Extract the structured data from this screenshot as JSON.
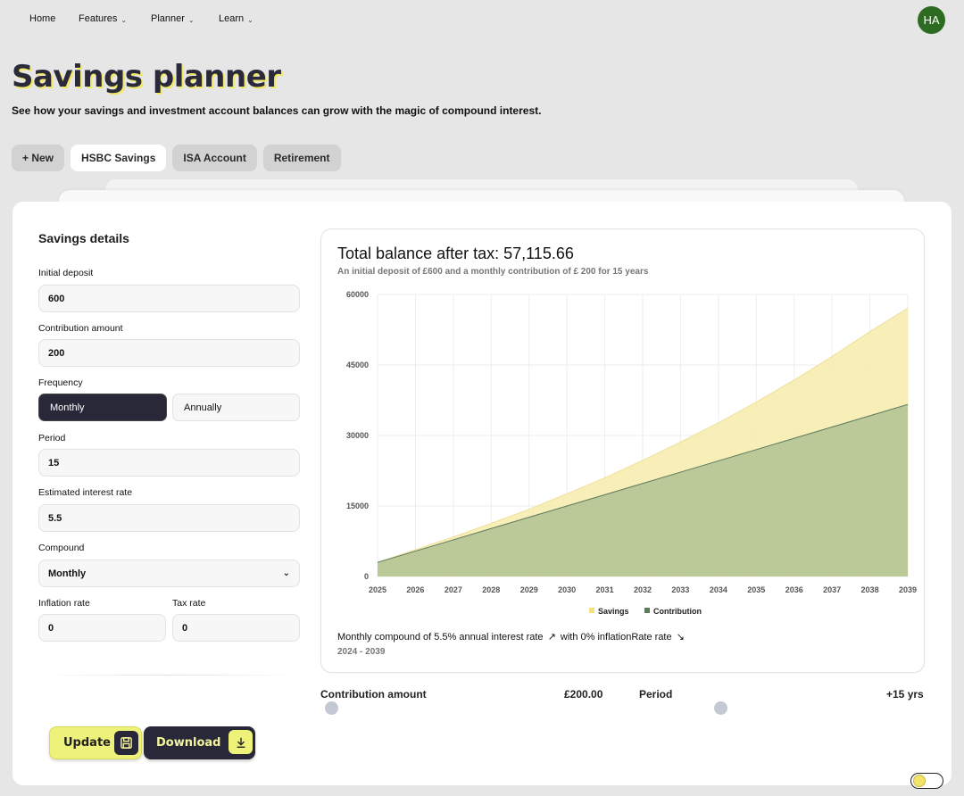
{
  "nav": {
    "items": [
      {
        "label": "Home",
        "has_menu": false
      },
      {
        "label": "Features",
        "has_menu": true
      },
      {
        "label": "Planner",
        "has_menu": true
      },
      {
        "label": "Learn",
        "has_menu": true
      }
    ],
    "avatar_initials": "HA"
  },
  "page": {
    "title": "Savings planner",
    "subtitle": "See how your savings and investment account balances can grow with the magic of compound interest."
  },
  "tabs": [
    {
      "label": "+ New",
      "active": false
    },
    {
      "label": "HSBC Savings",
      "active": true
    },
    {
      "label": "ISA Account",
      "active": false
    },
    {
      "label": "Retirement",
      "active": false
    }
  ],
  "form": {
    "title": "Savings details",
    "initial_deposit": {
      "label": "Initial deposit",
      "value": "600"
    },
    "contribution_amount": {
      "label": "Contribution amount",
      "value": "200"
    },
    "frequency": {
      "label": "Frequency",
      "options": [
        "Monthly",
        "Annually"
      ],
      "selected": "Monthly"
    },
    "period": {
      "label": "Period",
      "value": "15"
    },
    "interest_rate": {
      "label": "Estimated interest rate",
      "value": "5.5"
    },
    "compound": {
      "label": "Compound",
      "value": "Monthly"
    },
    "inflation_rate": {
      "label": "Inflation rate",
      "value": "0"
    },
    "tax_rate": {
      "label": "Tax rate",
      "value": "0"
    }
  },
  "chart": {
    "title": "Total balance after tax: 57,115.66",
    "subtitle": "An initial deposit of £600 and a monthly contribution of £ 200 for 15 years",
    "footer_part1": "Monthly compound of 5.5% annual interest rate",
    "footer_part2": "with 0% inflationRate rate",
    "footer_range": "2024 - 2039",
    "colors": {
      "savings": "#f5e27a",
      "contribution": "#5c7a5e"
    }
  },
  "chart_data": {
    "type": "area",
    "categories": [
      "2025",
      "2026",
      "2027",
      "2028",
      "2029",
      "2030",
      "2031",
      "2032",
      "2033",
      "2034",
      "2035",
      "2036",
      "2037",
      "2038",
      "2039"
    ],
    "series": [
      {
        "name": "Savings",
        "values": [
          3000,
          5700,
          8400,
          11300,
          14300,
          17600,
          21000,
          24700,
          28600,
          32700,
          37100,
          41800,
          46800,
          52100,
          57100
        ]
      },
      {
        "name": "Contribution",
        "values": [
          3000,
          5400,
          7800,
          10200,
          12600,
          15000,
          17400,
          19800,
          22200,
          24600,
          27000,
          29400,
          31800,
          34200,
          36600
        ]
      }
    ],
    "y_ticks": [
      0,
      15000,
      30000,
      45000,
      60000
    ],
    "ylim": [
      0,
      60000
    ],
    "grid": true,
    "legend": "bottom-center"
  },
  "sliders": [
    {
      "label": "Contribution amount",
      "value": "£200.00"
    },
    {
      "label": "Period",
      "value": "+15 yrs"
    }
  ],
  "buttons": {
    "update": "Update",
    "download": "Download"
  }
}
